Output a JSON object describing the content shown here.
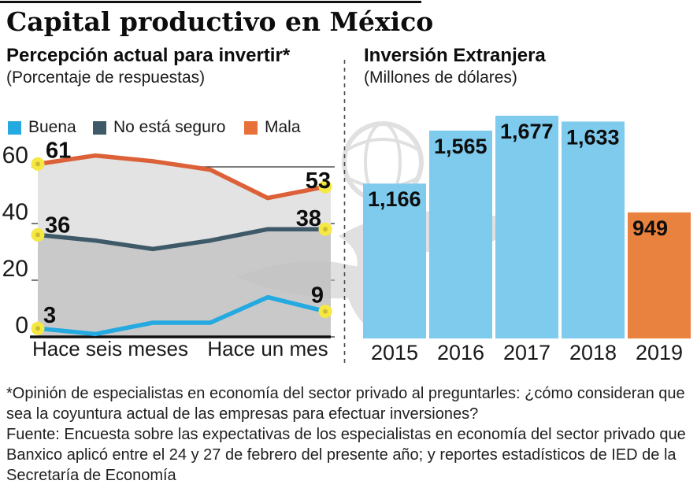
{
  "page": {
    "title": "Capital productivo en México"
  },
  "left_chart": {
    "heading": "Percepción actual para invertir*",
    "subheading": "(Porcentaje de respuestas)",
    "legend": [
      {
        "label": "Buena",
        "color": "#24a9e1"
      },
      {
        "label": "No está seguro",
        "color": "#3e5a68"
      },
      {
        "label": "Mala",
        "color": "#e8713a"
      }
    ]
  },
  "right_chart": {
    "heading": "Inversión Extranjera",
    "subheading": "(Millones de dólares)"
  },
  "footnotes": [
    "*Opinión de especialistas en economía del sector privado al preguntarles: ¿cómo consideran que sea la coyuntura actual de las empresas para efectuar inversiones?",
    "Fuente: Encuesta sobre las expectativas de los especialistas en economía del sector privado que Banxico aplicó entre el 24 y 27 de febrero del presente año; y reportes estadísticos de IED de la Secretaría de Economía"
  ],
  "chart_data": [
    {
      "type": "line",
      "title": "Percepción actual para invertir*",
      "subtitle": "(Porcentaje de respuestas)",
      "x_axis_labels": [
        "Hace seis meses",
        "Hace un mes"
      ],
      "y_ticks": [
        0,
        20,
        40,
        60
      ],
      "ylim": [
        0,
        70
      ],
      "grid": true,
      "legend_position": "top",
      "marker_color": "#f6e843",
      "marker_core_color": "#cdbd35",
      "series": [
        {
          "name": "Buena",
          "color": "#24a9e1",
          "values": [
            3,
            1,
            5,
            5,
            14,
            9
          ],
          "endpoint_labels": [
            "3",
            "9"
          ]
        },
        {
          "name": "No está seguro",
          "color": "#3e5a68",
          "values": [
            36,
            34,
            31,
            34,
            38,
            38
          ],
          "endpoint_labels": [
            "36",
            "38"
          ],
          "area_color": "#c9c9c9"
        },
        {
          "name": "Mala",
          "color": "#dd6138",
          "values": [
            61,
            64,
            62,
            59,
            49,
            53
          ],
          "endpoint_labels": [
            "61",
            "53"
          ],
          "area_color": "#e3e3e3"
        }
      ]
    },
    {
      "type": "bar",
      "title": "Inversión Extranjera",
      "subtitle": "(Millones de dólares)",
      "categories": [
        "2015",
        "2016",
        "2017",
        "2018",
        "2019"
      ],
      "values": [
        1166,
        1565,
        1677,
        1633,
        949
      ],
      "value_labels": [
        "1,166",
        "1,565",
        "1,677",
        "1,633",
        "949"
      ],
      "bar_colors": [
        "#7ecbee",
        "#7ecbee",
        "#7ecbee",
        "#7ecbee",
        "#e8823e"
      ],
      "ylim": [
        0,
        1700
      ]
    }
  ]
}
